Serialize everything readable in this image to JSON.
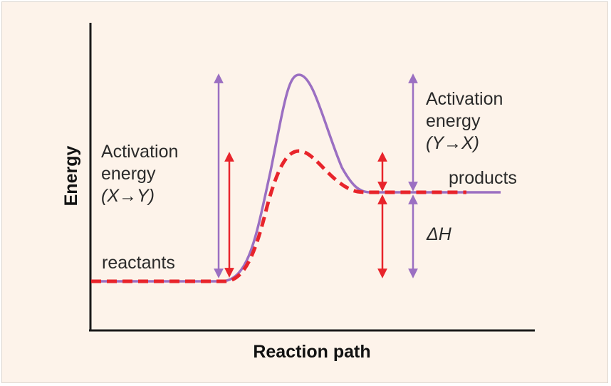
{
  "axes": {
    "x_label": "Reaction path",
    "y_label": "Energy"
  },
  "levels": {
    "reactants": "reactants",
    "products": "products"
  },
  "annotations": {
    "forward_activation": [
      "Activation",
      "energy",
      "(X→Y)"
    ],
    "reverse_activation": [
      "Activation",
      "energy",
      "(Y→X)"
    ],
    "delta_h": "ΔH"
  },
  "colors": {
    "background": "#fdf3ea",
    "uncatalyzed_curve": "#9b6fc2",
    "catalyzed_curve": "#e8242b",
    "axis": "#1a1a1a"
  }
}
